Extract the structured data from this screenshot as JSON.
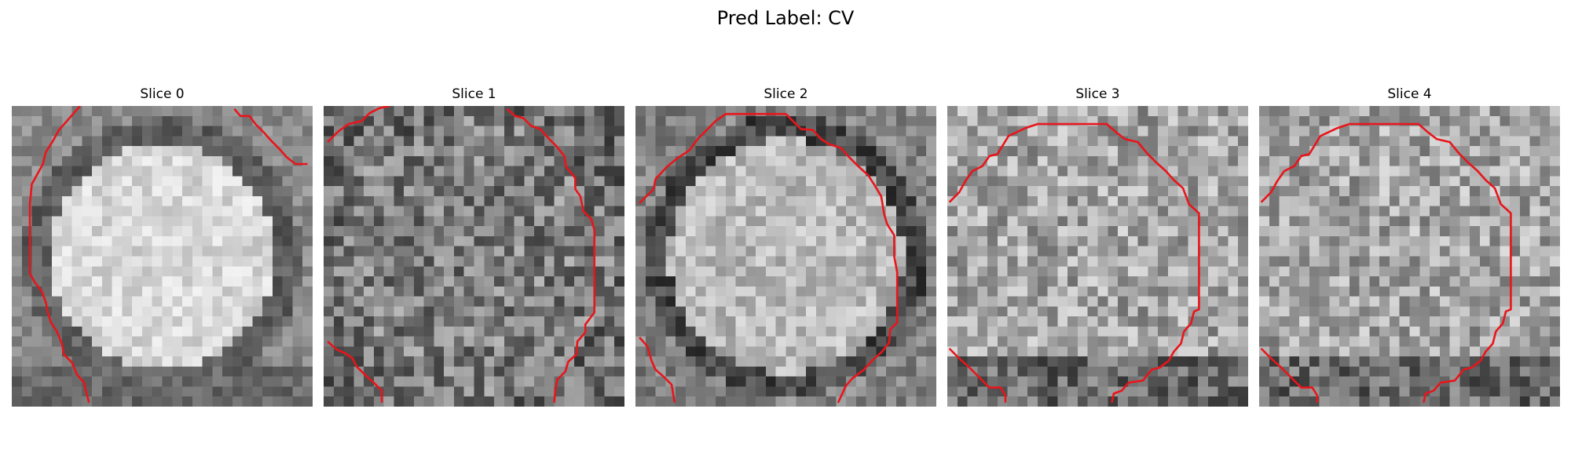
{
  "figure": {
    "suptitle": "Pred Label: CV",
    "contour_color": "#e8151b"
  },
  "panels": [
    {
      "title": "Slice 0",
      "image": {
        "grid": 30,
        "style": "bright-center",
        "seed": 11
      },
      "contour": [
        [
          6.8,
          0
        ],
        [
          5.5,
          1.5
        ],
        [
          4.7,
          2.4
        ],
        [
          4.1,
          3.5
        ],
        [
          3.4,
          4.6
        ],
        [
          3.1,
          5.8
        ],
        [
          2.0,
          7.8
        ],
        [
          1.8,
          9.8
        ],
        [
          1.8,
          12.8
        ],
        [
          1.8,
          16.7
        ],
        [
          2.3,
          17.6
        ],
        [
          3.0,
          18.5
        ],
        [
          3.4,
          19.6
        ],
        [
          3.6,
          20.6
        ],
        [
          3.9,
          21.6
        ],
        [
          4.5,
          22.5
        ],
        [
          5.0,
          23.7
        ],
        [
          5.2,
          24.8
        ],
        [
          6.0,
          25.6
        ],
        [
          6.5,
          26.8
        ],
        [
          7.2,
          27.6
        ],
        [
          7.7,
          29.6
        ]
      ]
    },
    {
      "title": "Slice 1",
      "image": {
        "grid": 30,
        "style": "noisy-dark",
        "seed": 23
      },
      "contour": [
        [
          0.4,
          3.6
        ],
        [
          1.5,
          2.5
        ],
        [
          2.5,
          1.8
        ],
        [
          3.8,
          1.5
        ],
        [
          4.6,
          0.7
        ],
        [
          5.6,
          0.2
        ],
        [
          6.6,
          0
        ]
      ]
    },
    {
      "title": "Slice 2",
      "image": {
        "grid": 30,
        "style": "ring-bright",
        "seed": 37
      },
      "contour": [
        [
          0.4,
          9.7
        ],
        [
          1.8,
          8.3
        ],
        [
          2.0,
          7.3
        ],
        [
          3.1,
          6.1
        ],
        [
          4.2,
          5.2
        ],
        [
          5.4,
          4.4
        ],
        [
          6.2,
          3.3
        ],
        [
          7.2,
          2.3
        ],
        [
          8.0,
          1.5
        ],
        [
          9.0,
          0.8
        ],
        [
          11.9,
          0.8
        ],
        [
          15.0,
          0.8
        ],
        [
          15.8,
          1.6
        ],
        [
          16.5,
          2.3
        ],
        [
          17.7,
          2.4
        ],
        [
          18.5,
          3.3
        ],
        [
          19.3,
          3.8
        ],
        [
          20.5,
          4.2
        ],
        [
          21.3,
          5.1
        ],
        [
          22.2,
          6.0
        ],
        [
          23.2,
          6.9
        ],
        [
          23.9,
          8.0
        ],
        [
          24.5,
          9.0
        ],
        [
          24.8,
          10.8
        ],
        [
          25.1,
          11.8
        ],
        [
          25.8,
          12.9
        ],
        [
          25.8,
          15.0
        ],
        [
          26.1,
          16.6
        ],
        [
          26.1,
          21.6
        ],
        [
          25.4,
          22.3
        ],
        [
          25.3,
          23.6
        ],
        [
          24.6,
          24.5
        ],
        [
          23.6,
          25.4
        ],
        [
          22.8,
          26.3
        ],
        [
          21.6,
          27.2
        ],
        [
          21.0,
          27.9
        ],
        [
          20.2,
          29.6
        ]
      ]
    },
    {
      "title": "Slice 3",
      "image": {
        "grid": 30,
        "style": "uniform-bright",
        "seed": 41
      },
      "contour": [
        [
          0.2,
          9.6
        ],
        [
          1.2,
          8.6
        ],
        [
          1.8,
          7.5
        ],
        [
          2.5,
          6.5
        ],
        [
          3.5,
          6.0
        ],
        [
          4.2,
          5.0
        ],
        [
          5.0,
          4.8
        ],
        [
          6.1,
          3.0
        ],
        [
          7.8,
          2.2
        ],
        [
          9.0,
          1.8
        ],
        [
          15.9,
          1.8
        ],
        [
          16.8,
          2.6
        ],
        [
          17.7,
          3.3
        ],
        [
          19.0,
          3.6
        ],
        [
          19.9,
          4.7
        ],
        [
          20.8,
          5.6
        ],
        [
          21.8,
          6.5
        ],
        [
          22.6,
          7.4
        ],
        [
          23.5,
          8.2
        ],
        [
          24.1,
          9.8
        ],
        [
          25.1,
          10.7
        ],
        [
          25.1,
          20.3
        ],
        [
          24.6,
          20.5
        ],
        [
          24.3,
          21.7
        ],
        [
          23.6,
          22.5
        ],
        [
          23.3,
          23.7
        ],
        [
          22.6,
          24.5
        ],
        [
          22.1,
          25.4
        ],
        [
          21.2,
          26.1
        ],
        [
          20.4,
          26.3
        ],
        [
          19.5,
          27.4
        ],
        [
          18.1,
          27.6
        ],
        [
          17.4,
          28.4
        ],
        [
          16.6,
          28.7
        ],
        [
          16.4,
          29.6
        ]
      ]
    },
    {
      "title": "Slice 4",
      "image": {
        "grid": 30,
        "style": "uniform-bright",
        "seed": 53
      },
      "contour": [
        [
          0.2,
          9.6
        ],
        [
          1.2,
          8.6
        ],
        [
          1.8,
          7.5
        ],
        [
          2.5,
          6.5
        ],
        [
          3.5,
          6.0
        ],
        [
          4.2,
          5.0
        ],
        [
          5.0,
          4.8
        ],
        [
          6.1,
          3.0
        ],
        [
          7.8,
          2.2
        ],
        [
          9.0,
          1.8
        ],
        [
          15.9,
          1.8
        ],
        [
          16.8,
          2.6
        ],
        [
          17.7,
          3.3
        ],
        [
          19.0,
          3.6
        ],
        [
          19.9,
          4.7
        ],
        [
          20.8,
          5.6
        ],
        [
          21.8,
          6.5
        ],
        [
          22.6,
          7.4
        ],
        [
          23.5,
          8.2
        ],
        [
          24.1,
          9.8
        ],
        [
          25.1,
          10.7
        ],
        [
          25.1,
          20.3
        ],
        [
          24.6,
          20.5
        ],
        [
          24.3,
          21.7
        ],
        [
          23.6,
          22.5
        ],
        [
          23.3,
          23.7
        ],
        [
          22.6,
          24.5
        ],
        [
          22.1,
          25.4
        ],
        [
          21.2,
          26.1
        ],
        [
          20.4,
          26.3
        ],
        [
          19.5,
          27.4
        ],
        [
          18.1,
          27.6
        ],
        [
          17.4,
          28.4
        ],
        [
          16.6,
          28.7
        ],
        [
          16.4,
          29.6
        ]
      ]
    }
  ],
  "extra_contours": [
    {
      "panel": 0,
      "points": [
        [
          22.2,
          0.3
        ],
        [
          22.8,
          1.0
        ],
        [
          23.7,
          1.0
        ],
        [
          24.3,
          1.8
        ],
        [
          25.1,
          2.6
        ],
        [
          25.9,
          3.5
        ],
        [
          26.7,
          4.3
        ],
        [
          27.4,
          5.1
        ],
        [
          28.3,
          5.8
        ],
        [
          29.5,
          5.8
        ]
      ]
    },
    {
      "panel": 1,
      "points": [
        [
          18.3,
          0.3
        ],
        [
          19.1,
          1.0
        ],
        [
          19.9,
          1.2
        ],
        [
          20.7,
          2.0
        ],
        [
          21.6,
          2.3
        ],
        [
          22.4,
          3.2
        ],
        [
          23.2,
          4.0
        ],
        [
          24.0,
          5.0
        ],
        [
          24.2,
          6.1
        ],
        [
          25.1,
          7.2
        ],
        [
          25.1,
          8.3
        ],
        [
          25.6,
          9.0
        ],
        [
          25.9,
          10.5
        ],
        [
          26.7,
          11.3
        ],
        [
          27.0,
          12.4
        ],
        [
          27.0,
          20.6
        ],
        [
          26.1,
          21.8
        ],
        [
          26.1,
          22.6
        ],
        [
          25.3,
          23.5
        ],
        [
          25.2,
          24.8
        ],
        [
          24.4,
          25.5
        ],
        [
          24.1,
          26.5
        ],
        [
          23.3,
          27.3
        ],
        [
          23.1,
          28.4
        ],
        [
          23.0,
          29.6
        ]
      ]
    },
    {
      "panel": 1,
      "points": [
        [
          0.4,
          23.5
        ],
        [
          1.3,
          24.3
        ],
        [
          2.2,
          24.7
        ],
        [
          2.9,
          25.2
        ],
        [
          3.3,
          26.0
        ],
        [
          4.2,
          26.9
        ],
        [
          5.0,
          27.6
        ],
        [
          5.8,
          28.4
        ],
        [
          5.8,
          29.6
        ]
      ]
    },
    {
      "panel": 2,
      "points": [
        [
          0.4,
          23.1
        ],
        [
          1.2,
          24.0
        ],
        [
          1.6,
          25.4
        ],
        [
          2.0,
          26.3
        ],
        [
          2.8,
          27.0
        ],
        [
          3.6,
          27.8
        ],
        [
          3.9,
          29.6
        ]
      ]
    },
    {
      "panel": 3,
      "points": [
        [
          0.2,
          24.2
        ],
        [
          1.2,
          25.2
        ],
        [
          2.2,
          26.1
        ],
        [
          3.2,
          27.1
        ],
        [
          4.2,
          28.1
        ],
        [
          5.3,
          28.1
        ],
        [
          5.8,
          28.9
        ],
        [
          5.8,
          29.6
        ]
      ]
    },
    {
      "panel": 4,
      "points": [
        [
          0.2,
          24.2
        ],
        [
          1.2,
          25.2
        ],
        [
          2.2,
          26.1
        ],
        [
          3.2,
          27.1
        ],
        [
          4.2,
          28.1
        ],
        [
          5.3,
          28.1
        ],
        [
          5.8,
          28.9
        ],
        [
          5.8,
          29.6
        ]
      ]
    }
  ]
}
